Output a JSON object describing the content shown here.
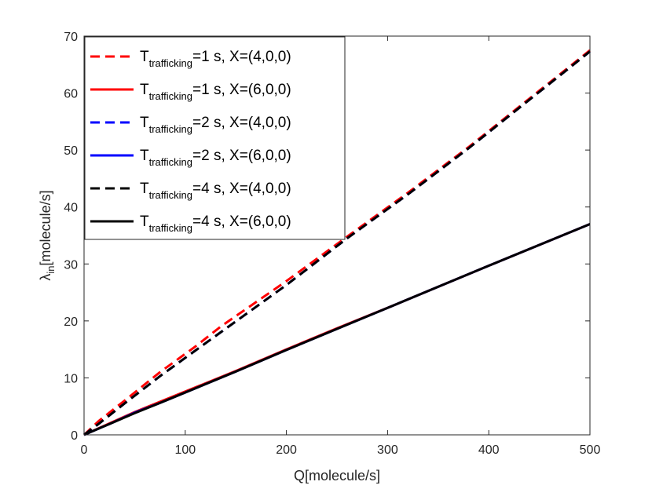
{
  "chart_data": {
    "type": "line",
    "title": "",
    "xlabel": "Q[molecule/s]",
    "ylabel_main": "λ",
    "ylabel_sub": "in",
    "ylabel_rest": "[molecule/s]",
    "xlim": [
      0,
      500
    ],
    "ylim": [
      0,
      70
    ],
    "xticks": [
      0,
      100,
      200,
      300,
      400,
      500
    ],
    "yticks": [
      0,
      10,
      20,
      30,
      40,
      50,
      60,
      70
    ],
    "grid": false,
    "legend_position": "top-left",
    "series": [
      {
        "name_main": "T",
        "name_sub": "trafficking",
        "name_rest": "=1 s, X=(4,0,0)",
        "color": "#ff0000",
        "dash": true,
        "x": [
          0,
          15,
          40,
          75,
          110,
          135,
          200,
          260,
          320,
          380,
          440,
          500
        ],
        "y": [
          0,
          2.5,
          6.0,
          11.0,
          15.5,
          19.0,
          27.0,
          34.8,
          42.5,
          50.5,
          59.0,
          67.5
        ]
      },
      {
        "name_main": "T",
        "name_sub": "trafficking",
        "name_rest": "=1 s, X=(6,0,0)",
        "color": "#ff0000",
        "dash": false,
        "x": [
          0,
          25,
          50,
          75,
          150,
          200,
          250,
          300,
          400,
          500
        ],
        "y": [
          0,
          2.0,
          4.0,
          5.8,
          11.2,
          15.0,
          18.7,
          22.3,
          29.7,
          37.0
        ]
      },
      {
        "name_main": "T",
        "name_sub": "trafficking",
        "name_rest": "=2 s, X=(4,0,0)",
        "color": "#0000ff",
        "dash": true,
        "x": [
          0,
          15,
          40,
          75,
          110,
          135,
          200,
          260,
          320,
          380,
          440,
          500
        ],
        "y": [
          0,
          2.0,
          5.5,
          10.3,
          14.8,
          18.0,
          26.3,
          34.5,
          42.2,
          50.3,
          58.8,
          67.3
        ]
      },
      {
        "name_main": "T",
        "name_sub": "trafficking",
        "name_rest": "=2 s, X=(6,0,0)",
        "color": "#0000ff",
        "dash": false,
        "x": [
          0,
          25,
          50,
          75,
          150,
          200,
          250,
          300,
          400,
          500
        ],
        "y": [
          0,
          1.9,
          3.9,
          5.6,
          11.1,
          14.9,
          18.6,
          22.3,
          29.7,
          37.0
        ]
      },
      {
        "name_main": "T",
        "name_sub": "trafficking",
        "name_rest": "=4 s, X=(4,0,0)",
        "color": "#000000",
        "dash": true,
        "x": [
          0,
          15,
          40,
          75,
          110,
          135,
          200,
          260,
          320,
          380,
          440,
          500
        ],
        "y": [
          0,
          2.0,
          5.5,
          10.3,
          14.8,
          18.0,
          26.3,
          34.5,
          42.2,
          50.3,
          58.8,
          67.3
        ]
      },
      {
        "name_main": "T",
        "name_sub": "trafficking",
        "name_rest": "=4 s, X=(6,0,0)",
        "color": "#000000",
        "dash": false,
        "x": [
          0,
          25,
          50,
          75,
          150,
          200,
          250,
          300,
          400,
          500
        ],
        "y": [
          0,
          1.9,
          3.8,
          5.6,
          11.1,
          14.9,
          18.6,
          22.3,
          29.7,
          37.0
        ]
      }
    ]
  }
}
